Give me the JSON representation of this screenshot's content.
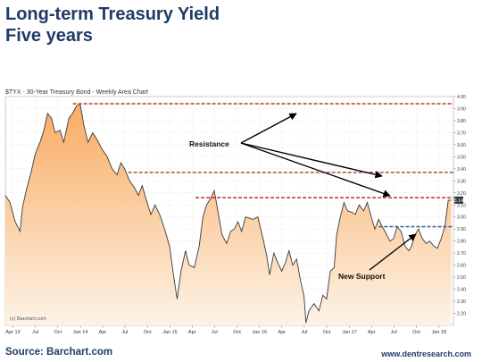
{
  "slide": {
    "title_line1": "Long-term Treasury Yield",
    "title_line2": "Five years",
    "source": "Source: Barchart.com",
    "website": "www.dentresearch.com"
  },
  "chart_data": {
    "type": "area",
    "title": "$TYX - 30-Year Treasury Bond - Weekly Area Chart",
    "watermark": "(c) Barchart.com",
    "xlim": [
      "2013-03-01",
      "2018-03-01"
    ],
    "ylim": [
      2.1,
      4.0
    ],
    "x_ticks": [
      {
        "date": "2013-04-01",
        "label": "Apr 13"
      },
      {
        "date": "2013-07-01",
        "label": "Jul"
      },
      {
        "date": "2013-10-01",
        "label": "Oct"
      },
      {
        "date": "2014-01-01",
        "label": "Jan 14"
      },
      {
        "date": "2014-04-01",
        "label": "Apr"
      },
      {
        "date": "2014-07-01",
        "label": "Jul"
      },
      {
        "date": "2014-10-01",
        "label": "Oct"
      },
      {
        "date": "2015-01-01",
        "label": "Jan 15"
      },
      {
        "date": "2015-04-01",
        "label": "Apr"
      },
      {
        "date": "2015-07-01",
        "label": "Jul"
      },
      {
        "date": "2015-10-01",
        "label": "Oct"
      },
      {
        "date": "2016-01-01",
        "label": "Jan 16"
      },
      {
        "date": "2016-04-01",
        "label": "Apr"
      },
      {
        "date": "2016-07-01",
        "label": "Jul"
      },
      {
        "date": "2016-10-01",
        "label": "Oct"
      },
      {
        "date": "2017-01-01",
        "label": "Jan 17"
      },
      {
        "date": "2017-04-01",
        "label": "Apr"
      },
      {
        "date": "2017-07-01",
        "label": "Jul"
      },
      {
        "date": "2017-10-01",
        "label": "Oct"
      },
      {
        "date": "2018-01-01",
        "label": "Jan 18"
      }
    ],
    "y_ticks": [
      2.2,
      2.3,
      2.4,
      2.5,
      2.6,
      2.7,
      2.8,
      2.9,
      3.0,
      3.1,
      3.2,
      3.3,
      3.4,
      3.5,
      3.6,
      3.7,
      3.8,
      3.9,
      4.0
    ],
    "last_value_label": "3.14",
    "series": [
      {
        "x": [
          "2013-03-01",
          "2013-03-20",
          "2013-04-10",
          "2013-04-30",
          "2013-05-10",
          "2013-05-25",
          "2013-06-15",
          "2013-06-30",
          "2013-07-20",
          "2013-08-05",
          "2013-08-20",
          "2013-09-05",
          "2013-09-20",
          "2013-10-10",
          "2013-10-25",
          "2013-11-15",
          "2013-11-30",
          "2013-12-15",
          "2013-12-31",
          "2014-01-15",
          "2014-02-01",
          "2014-02-20",
          "2014-03-10",
          "2014-03-31",
          "2014-04-20",
          "2014-05-10",
          "2014-05-30",
          "2014-06-15",
          "2014-06-30",
          "2014-07-20",
          "2014-08-10",
          "2014-08-25",
          "2014-09-10",
          "2014-09-25",
          "2014-10-15",
          "2014-11-01",
          "2014-11-20",
          "2014-12-10",
          "2014-12-31",
          "2015-01-15",
          "2015-01-30",
          "2015-02-15",
          "2015-03-05",
          "2015-03-20",
          "2015-04-10",
          "2015-04-30",
          "2015-05-15",
          "2015-05-30",
          "2015-06-15",
          "2015-06-30",
          "2015-07-15",
          "2015-08-01",
          "2015-08-20",
          "2015-09-05",
          "2015-09-20",
          "2015-10-05",
          "2015-10-20",
          "2015-11-05",
          "2015-11-20",
          "2015-12-05",
          "2015-12-25",
          "2016-01-15",
          "2016-01-30",
          "2016-02-11",
          "2016-02-28",
          "2016-03-15",
          "2016-03-31",
          "2016-04-15",
          "2016-04-30",
          "2016-05-15",
          "2016-05-31",
          "2016-06-15",
          "2016-06-30",
          "2016-07-08",
          "2016-07-20",
          "2016-08-10",
          "2016-08-30",
          "2016-09-15",
          "2016-09-30",
          "2016-10-15",
          "2016-10-31",
          "2016-11-10",
          "2016-11-25",
          "2016-12-10",
          "2016-12-25",
          "2017-01-10",
          "2017-01-25",
          "2017-02-10",
          "2017-02-28",
          "2017-03-15",
          "2017-03-31",
          "2017-04-15",
          "2017-04-30",
          "2017-05-15",
          "2017-05-31",
          "2017-06-15",
          "2017-06-30",
          "2017-07-15",
          "2017-07-31",
          "2017-08-15",
          "2017-08-31",
          "2017-09-10",
          "2017-09-25",
          "2017-10-10",
          "2017-10-25",
          "2017-11-10",
          "2017-11-25",
          "2017-12-10",
          "2017-12-25",
          "2018-01-10",
          "2018-01-25",
          "2018-02-08",
          "2018-02-20"
        ],
        "y": [
          3.18,
          3.12,
          2.96,
          2.88,
          3.08,
          3.22,
          3.38,
          3.52,
          3.62,
          3.72,
          3.86,
          3.82,
          3.7,
          3.72,
          3.62,
          3.82,
          3.86,
          3.92,
          3.94,
          3.76,
          3.62,
          3.7,
          3.64,
          3.56,
          3.5,
          3.4,
          3.35,
          3.45,
          3.4,
          3.3,
          3.24,
          3.18,
          3.26,
          3.15,
          3.02,
          3.1,
          3.02,
          2.9,
          2.75,
          2.52,
          2.32,
          2.55,
          2.72,
          2.6,
          2.58,
          2.76,
          3.0,
          3.1,
          3.15,
          3.22,
          3.05,
          2.85,
          2.78,
          2.88,
          2.9,
          2.96,
          2.88,
          3.0,
          2.99,
          2.98,
          3.0,
          2.82,
          2.68,
          2.52,
          2.7,
          2.62,
          2.55,
          2.62,
          2.72,
          2.6,
          2.65,
          2.48,
          2.34,
          2.12,
          2.22,
          2.28,
          2.22,
          2.35,
          2.32,
          2.55,
          2.58,
          2.85,
          3.0,
          3.12,
          3.05,
          3.04,
          3.02,
          3.1,
          3.05,
          3.12,
          3.0,
          2.9,
          2.98,
          2.92,
          2.86,
          2.8,
          2.82,
          2.92,
          2.88,
          2.76,
          2.72,
          2.75,
          2.85,
          2.9,
          2.82,
          2.78,
          2.8,
          2.76,
          2.74,
          2.82,
          2.92,
          3.14,
          3.14
        ]
      }
    ],
    "lines": [
      {
        "type": "resistance",
        "level": 3.94,
        "from": "2013-12-01",
        "to": "2018-03-01"
      },
      {
        "type": "resistance",
        "level": 3.37,
        "from": "2014-07-15",
        "to": "2018-03-01"
      },
      {
        "type": "resistance",
        "level": 3.16,
        "from": "2015-04-15",
        "to": "2018-03-01"
      },
      {
        "type": "support",
        "level": 2.92,
        "from": "2017-05-01",
        "to": "2018-03-01"
      }
    ],
    "annotations": [
      {
        "id": "resistance",
        "text": "Resistance"
      },
      {
        "id": "new-support",
        "text": "New Support"
      }
    ],
    "colors": {
      "area_top": "#f9ab63",
      "area_bottom": "#fdf3e6",
      "line": "#3a3a3a",
      "resistance": "#c0453d",
      "support": "#3c6aa8",
      "grid": "#d9d9d9",
      "title_text": "#1f3b66",
      "last_value_box": "#333333"
    }
  }
}
